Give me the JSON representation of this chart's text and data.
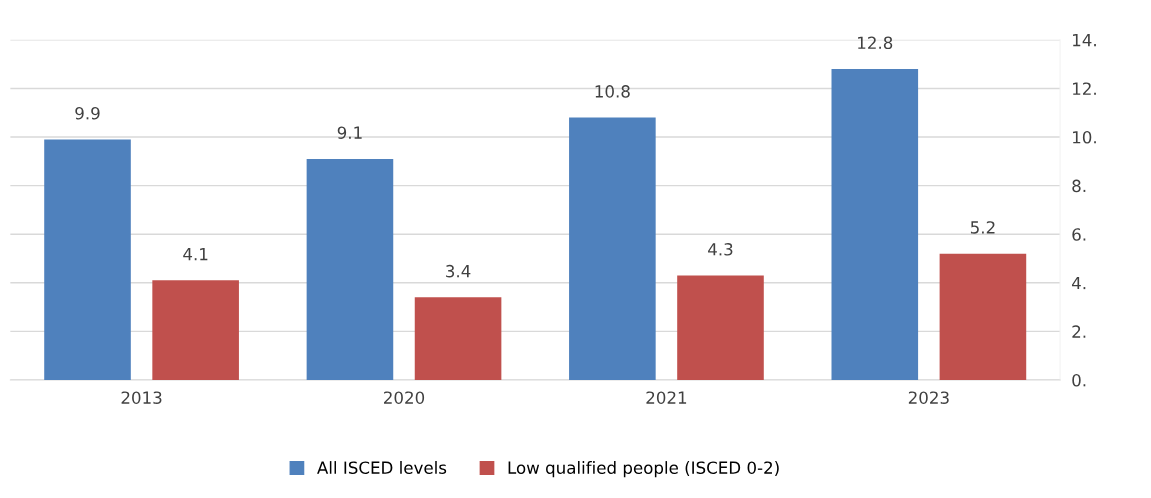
{
  "chart_data": {
    "type": "bar",
    "categories": [
      "2013",
      "2020",
      "2021",
      "2023"
    ],
    "series": [
      {
        "name": "All ISCED levels",
        "color": "#4f81bd",
        "values": [
          9.9,
          9.1,
          10.8,
          12.8
        ]
      },
      {
        "name": "Low qualified people (ISCED 0-2)",
        "color": "#c0504d",
        "values": [
          4.1,
          3.4,
          4.3,
          5.2
        ]
      }
    ],
    "ylim": [
      0,
      14
    ],
    "yticks": [
      {
        "value": 0,
        "label": "0."
      },
      {
        "value": 2,
        "label": "2."
      },
      {
        "value": 4,
        "label": "4."
      },
      {
        "value": 6,
        "label": "6."
      },
      {
        "value": 8,
        "label": "8."
      },
      {
        "value": 10,
        "label": "10."
      },
      {
        "value": 12,
        "label": "12."
      },
      {
        "value": 14,
        "label": "14."
      }
    ],
    "grid": "y",
    "legend": "bottom",
    "data_labels": true
  }
}
